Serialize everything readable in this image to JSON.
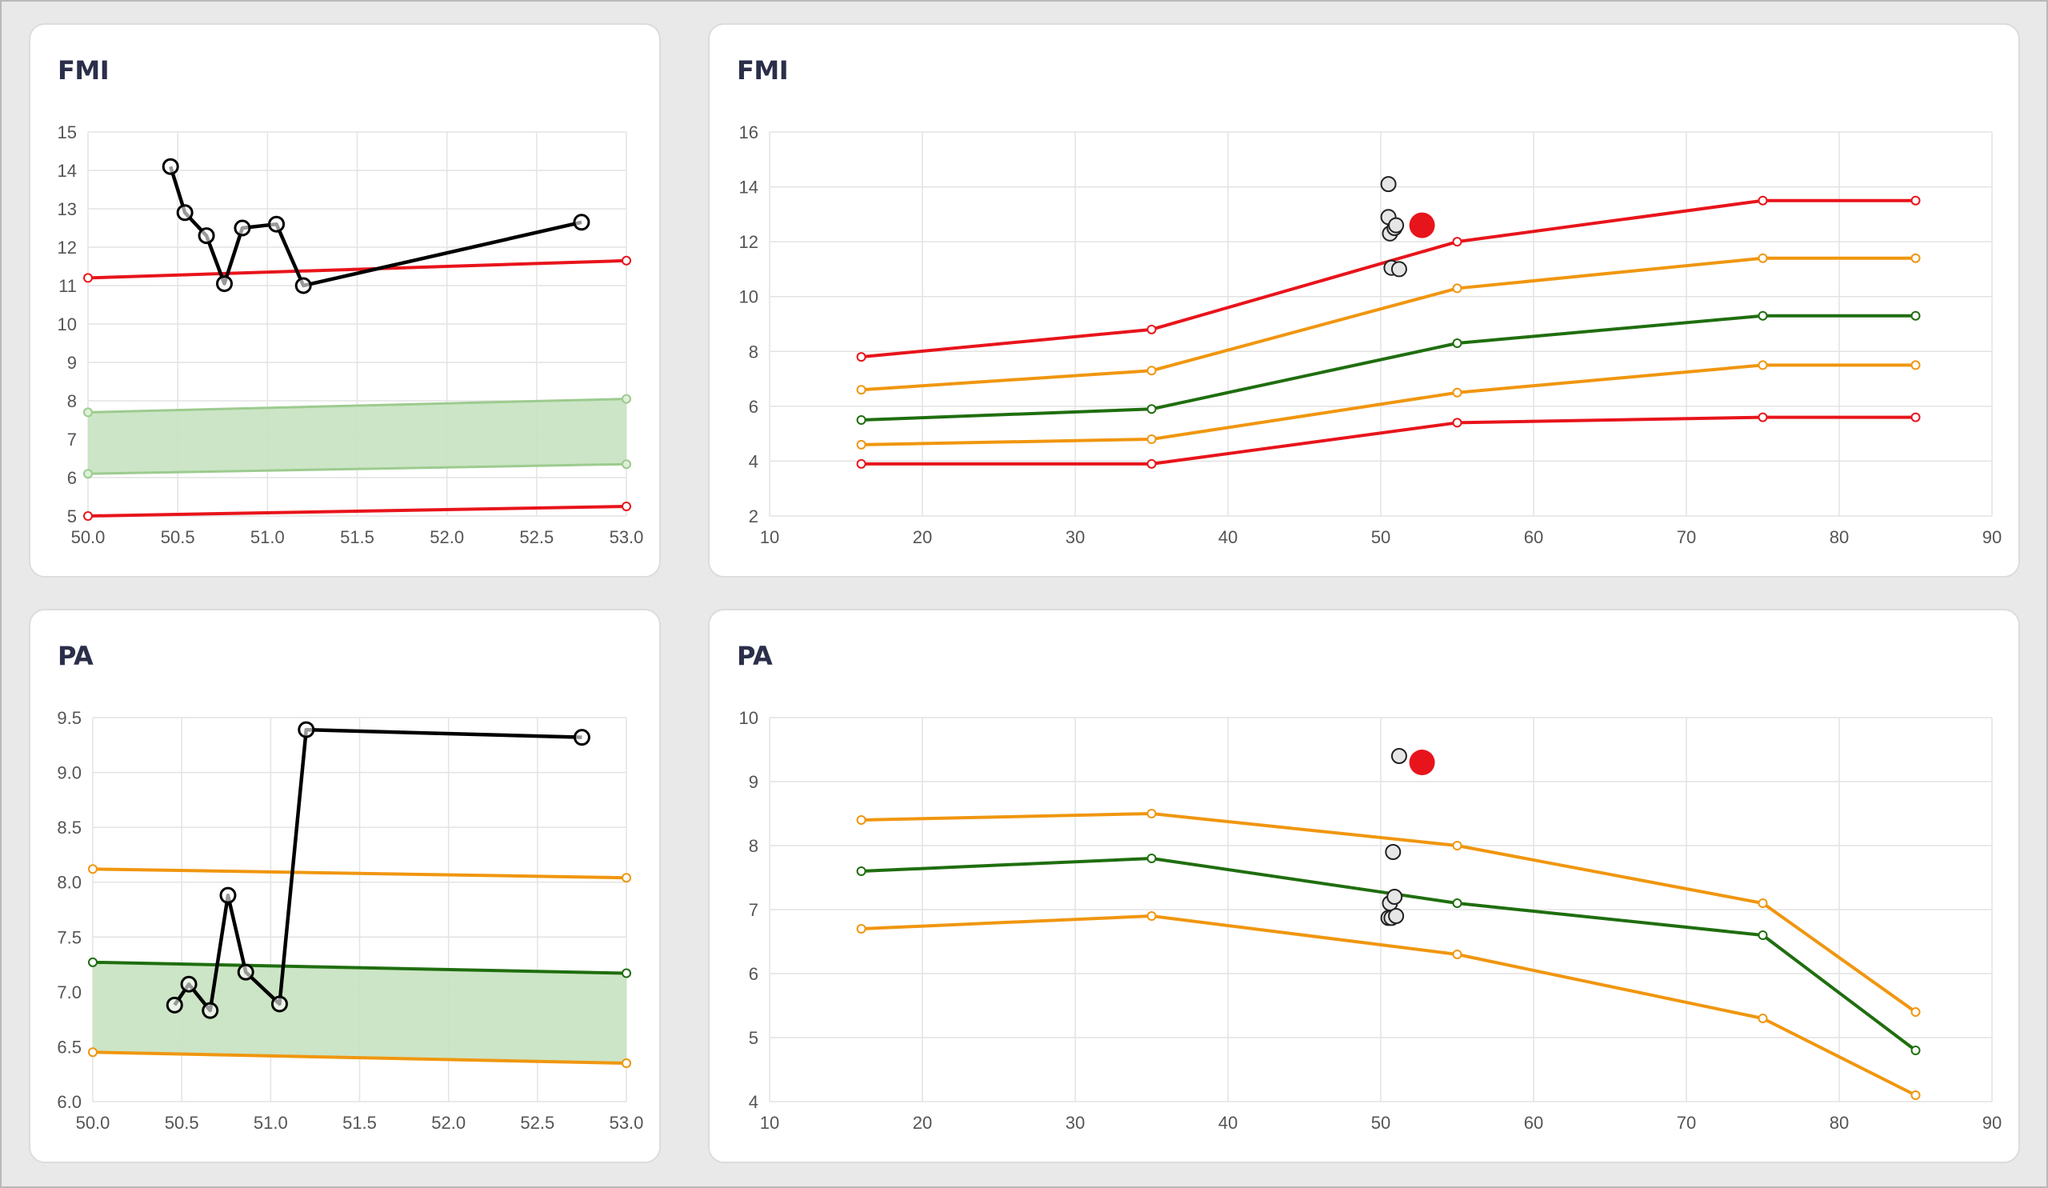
{
  "colors": {
    "red": "#e8141b",
    "orange": "#f0960f",
    "green": "#1f6e0f",
    "band_fill": "#c7e2c0",
    "band_edge": "#9ccb8f",
    "history": "#000000",
    "current": "#e8141b"
  },
  "cards": {
    "fmi_small": {
      "title": "FMI"
    },
    "fmi_large": {
      "title": "FMI"
    },
    "pa_small": {
      "title": "PA"
    },
    "pa_large": {
      "title": "PA"
    }
  },
  "chart_data": [
    {
      "id": "fmi_small",
      "type": "line",
      "title": "FMI",
      "xlim": [
        50.0,
        53.0
      ],
      "ylim": [
        5,
        15
      ],
      "xticks": [
        "50.0",
        "50.5",
        "51.0",
        "51.5",
        "52.0",
        "52.5",
        "53.0"
      ],
      "yticks": [
        "5",
        "6",
        "7",
        "8",
        "9",
        "10",
        "11",
        "12",
        "13",
        "14",
        "15"
      ],
      "grid": true,
      "band": {
        "color": "green",
        "x": [
          50.0,
          53.0
        ],
        "lower": [
          6.1,
          6.35
        ],
        "upper": [
          7.7,
          8.05
        ]
      },
      "series": [
        {
          "color": "red",
          "x": [
            50.0,
            53.0
          ],
          "y": [
            11.2,
            11.65
          ]
        },
        {
          "color": "red",
          "x": [
            50.0,
            53.0
          ],
          "y": [
            5.0,
            5.25
          ]
        }
      ],
      "history": {
        "x": [
          50.46,
          50.54,
          50.66,
          50.76,
          50.86,
          51.05,
          51.2,
          52.75
        ],
        "y": [
          14.1,
          12.9,
          12.3,
          11.05,
          12.5,
          12.6,
          11.0,
          12.65
        ]
      }
    },
    {
      "id": "fmi_large",
      "type": "line",
      "title": "FMI",
      "xlim": [
        10,
        90
      ],
      "ylim": [
        2,
        16
      ],
      "xticks": [
        "10",
        "20",
        "30",
        "40",
        "50",
        "60",
        "70",
        "80",
        "90"
      ],
      "yticks": [
        "2",
        "4",
        "6",
        "8",
        "10",
        "12",
        "14",
        "16"
      ],
      "grid": true,
      "series": [
        {
          "color": "red",
          "x": [
            16,
            35,
            55,
            75,
            85
          ],
          "y": [
            7.8,
            8.8,
            12.0,
            13.5,
            13.5
          ]
        },
        {
          "color": "orange",
          "x": [
            16,
            35,
            55,
            75,
            85
          ],
          "y": [
            6.6,
            7.3,
            10.3,
            11.4,
            11.4
          ]
        },
        {
          "color": "green",
          "x": [
            16,
            35,
            55,
            75,
            85
          ],
          "y": [
            5.5,
            5.9,
            8.3,
            9.3,
            9.3
          ]
        },
        {
          "color": "orange",
          "x": [
            16,
            35,
            55,
            75,
            85
          ],
          "y": [
            4.6,
            4.8,
            6.5,
            7.5,
            7.5
          ]
        },
        {
          "color": "red",
          "x": [
            16,
            35,
            55,
            75,
            85
          ],
          "y": [
            3.9,
            3.9,
            5.4,
            5.6,
            5.6
          ]
        }
      ],
      "scatter": {
        "x": [
          50.5,
          50.5,
          50.6,
          50.9,
          51.0,
          50.7,
          51.2
        ],
        "y": [
          14.1,
          12.9,
          12.3,
          12.5,
          12.6,
          11.05,
          11.0
        ]
      },
      "current": {
        "x": [
          52.7
        ],
        "y": [
          12.6
        ]
      }
    },
    {
      "id": "pa_small",
      "type": "line",
      "title": "PA",
      "xlim": [
        50.0,
        53.0
      ],
      "ylim": [
        6.0,
        9.5
      ],
      "xticks": [
        "50.0",
        "50.5",
        "51.0",
        "51.5",
        "52.0",
        "52.5",
        "53.0"
      ],
      "yticks": [
        "6.0",
        "6.5",
        "7.0",
        "7.5",
        "8.0",
        "8.5",
        "9.0",
        "9.5"
      ],
      "grid": true,
      "band": {
        "color": "green",
        "x": [
          50.0,
          53.0
        ],
        "lower": [
          6.45,
          6.35
        ],
        "upper": [
          7.27,
          7.17
        ]
      },
      "series": [
        {
          "color": "orange",
          "x": [
            50.0,
            53.0
          ],
          "y": [
            8.12,
            8.04
          ]
        },
        {
          "color": "green",
          "x": [
            50.0,
            53.0
          ],
          "y": [
            7.27,
            7.17
          ]
        },
        {
          "color": "orange",
          "x": [
            50.0,
            53.0
          ],
          "y": [
            6.45,
            6.35
          ]
        }
      ],
      "history": {
        "x": [
          50.46,
          50.54,
          50.66,
          50.76,
          50.86,
          51.05,
          51.2,
          52.75
        ],
        "y": [
          6.88,
          7.07,
          6.83,
          7.88,
          7.18,
          6.89,
          9.39,
          9.32
        ]
      }
    },
    {
      "id": "pa_large",
      "type": "line",
      "title": "PA",
      "xlim": [
        10,
        90
      ],
      "ylim": [
        4,
        10
      ],
      "xticks": [
        "10",
        "20",
        "30",
        "40",
        "50",
        "60",
        "70",
        "80",
        "90"
      ],
      "yticks": [
        "4",
        "5",
        "6",
        "7",
        "8",
        "9",
        "10"
      ],
      "grid": true,
      "series": [
        {
          "color": "orange",
          "x": [
            16,
            35,
            55,
            75,
            85
          ],
          "y": [
            8.4,
            8.5,
            8.0,
            7.1,
            5.4
          ]
        },
        {
          "color": "green",
          "x": [
            16,
            35,
            55,
            75,
            85
          ],
          "y": [
            7.6,
            7.8,
            7.1,
            6.6,
            4.8
          ]
        },
        {
          "color": "orange",
          "x": [
            16,
            35,
            55,
            75,
            85
          ],
          "y": [
            6.7,
            6.9,
            6.3,
            5.3,
            4.1
          ]
        }
      ],
      "scatter": {
        "x": [
          51.2,
          50.8,
          50.6,
          50.9,
          50.5,
          50.7,
          51.0
        ],
        "y": [
          9.4,
          7.9,
          7.1,
          7.2,
          6.87,
          6.87,
          6.9
        ]
      },
      "current": {
        "x": [
          52.7
        ],
        "y": [
          9.3
        ]
      }
    }
  ]
}
